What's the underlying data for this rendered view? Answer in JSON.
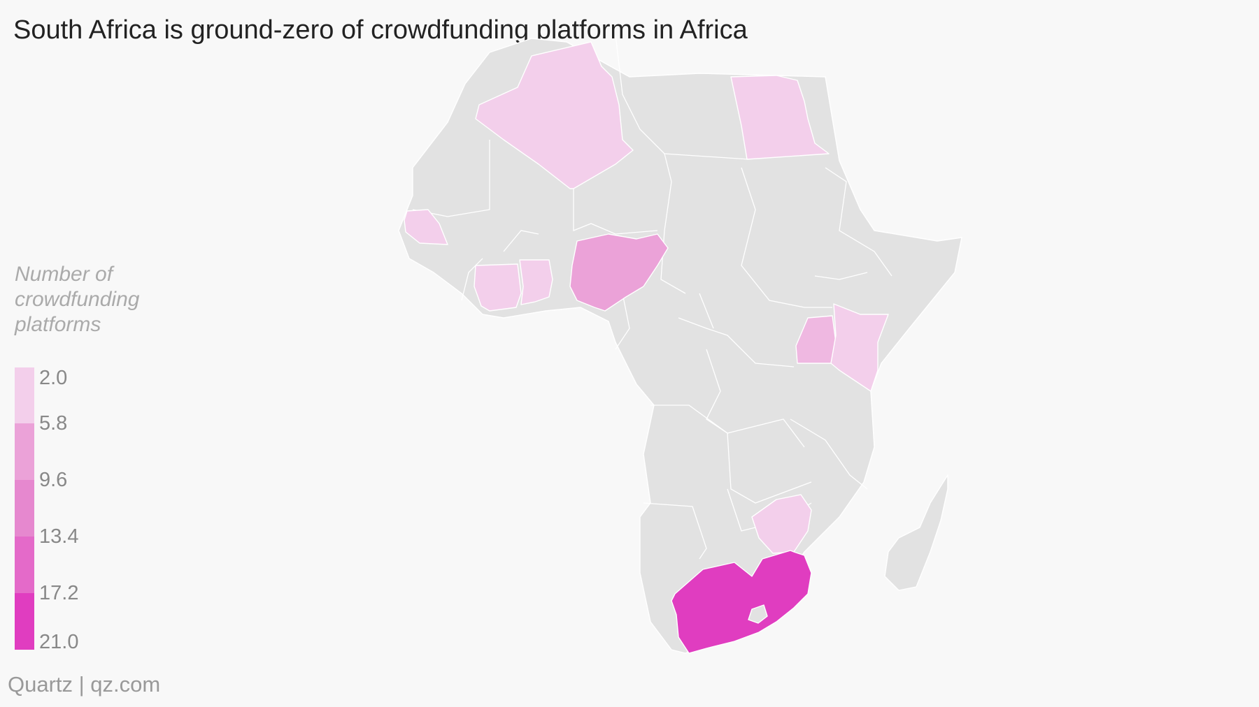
{
  "title": "South Africa is ground-zero of crowdfunding platforms in Africa",
  "legend": {
    "title": "Number of crowdfunding platforms",
    "min": 2.0,
    "max": 21.0,
    "ticks": [
      "2.0",
      "5.8",
      "9.6",
      "13.4",
      "17.2",
      "21.0"
    ],
    "colors": [
      "#f3cfeb",
      "#efb8e1",
      "#eba2d8",
      "#e688cf",
      "#e46ac9",
      "#e03dc0"
    ]
  },
  "credit": "Quartz | qz.com",
  "colors": {
    "background": "#f8f8f8",
    "no_data": "#e2e2e2",
    "border": "#ffffff"
  },
  "map_data": {
    "countries": [
      {
        "name": "Algeria",
        "value": 2
      },
      {
        "name": "Egypt",
        "value": 2
      },
      {
        "name": "Senegal",
        "value": 2
      },
      {
        "name": "Cote d'Ivoire",
        "value": 2
      },
      {
        "name": "Ghana",
        "value": 2
      },
      {
        "name": "Nigeria",
        "value": 6
      },
      {
        "name": "Uganda",
        "value": 3
      },
      {
        "name": "Kenya",
        "value": 2
      },
      {
        "name": "Zimbabwe",
        "value": 2
      },
      {
        "name": "South Africa",
        "value": 21
      }
    ]
  }
}
